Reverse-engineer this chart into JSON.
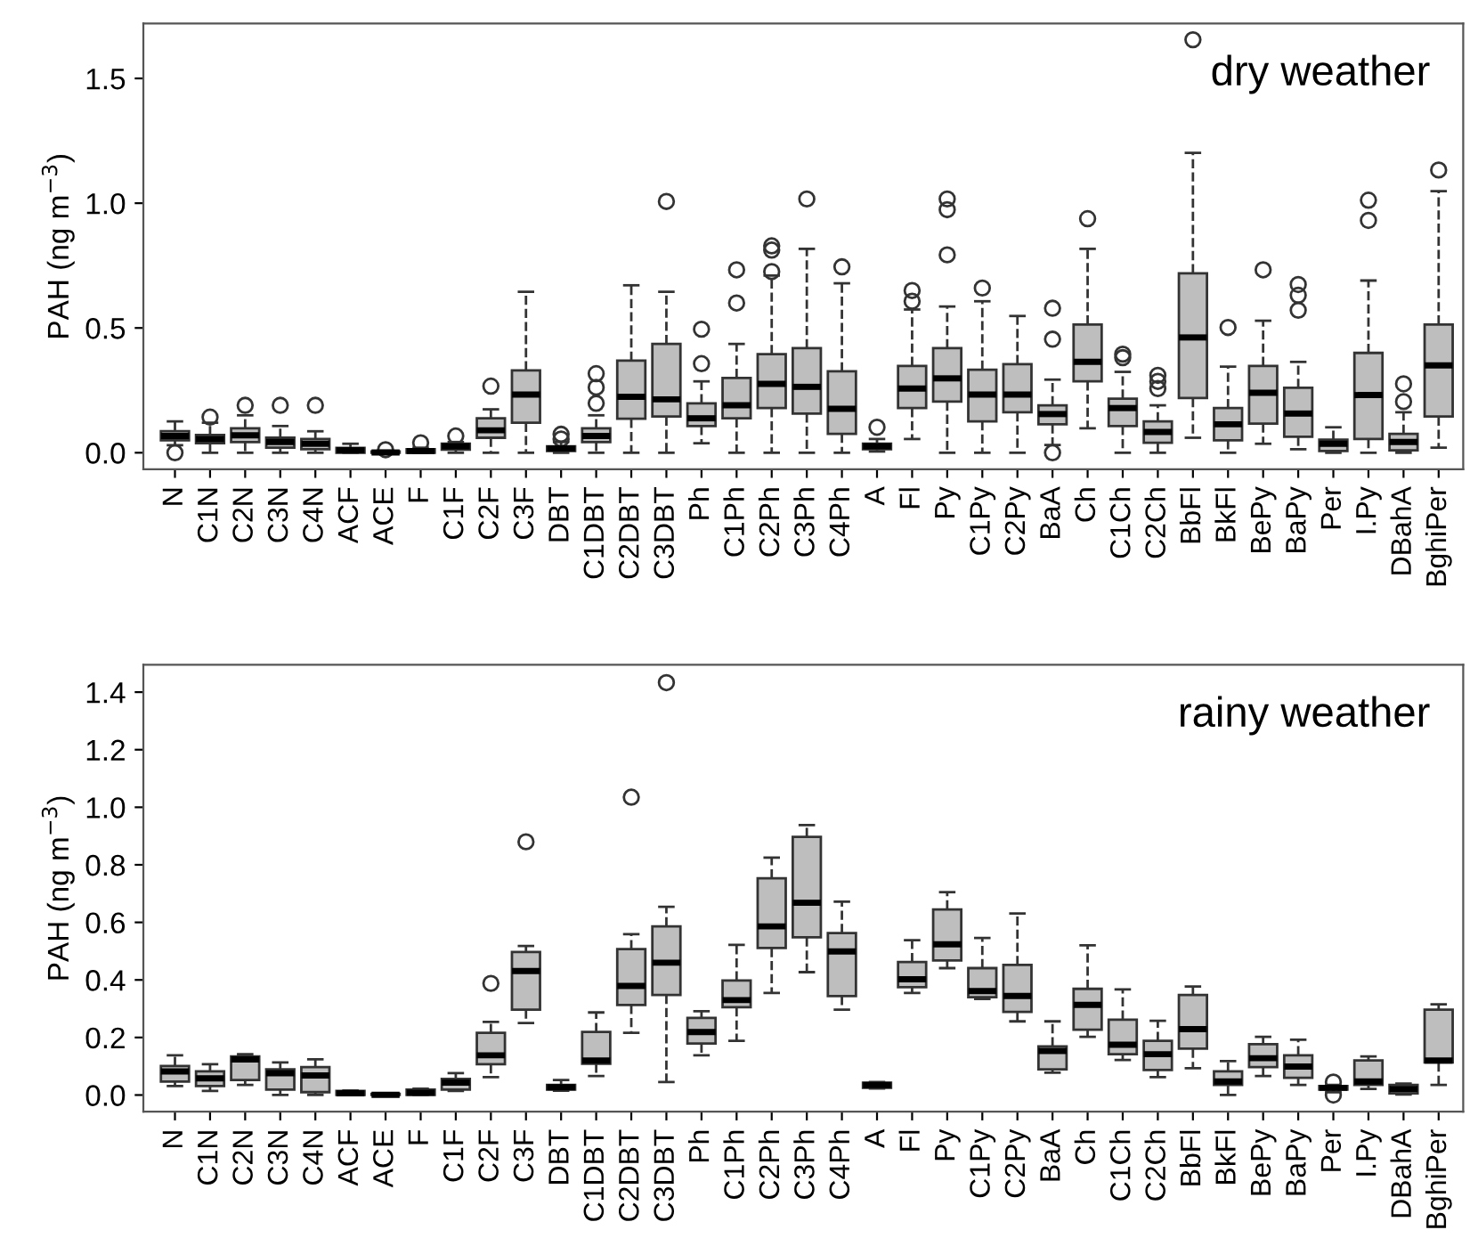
{
  "chart_data": [
    {
      "type": "box",
      "title": "dry weather",
      "ylabel": "PAH (ng m$^{−3}$)",
      "color": "#bebebe",
      "categories": [
        "N",
        "C1N",
        "C2N",
        "C3N",
        "C4N",
        "ACF",
        "ACE",
        "F",
        "C1F",
        "C2F",
        "C3F",
        "DBT",
        "C1DBT",
        "C2DBT",
        "C3DBT",
        "Ph",
        "C1Ph",
        "C2Ph",
        "C3Ph",
        "C4Ph",
        "A",
        "Fl",
        "Py",
        "C1Py",
        "C2Py",
        "BaA",
        "Ch",
        "C1Ch",
        "C2Ch",
        "BbFl",
        "BkFl",
        "BePy",
        "BaPy",
        "Per",
        "I.Py",
        "DBahA",
        "BghiPer"
      ],
      "ylim": [
        -0.066,
        1.72
      ],
      "yticks": [
        {
          "value": 0.0,
          "label": "0.0"
        },
        {
          "value": 0.5,
          "label": "0.5"
        },
        {
          "value": 1.0,
          "label": "1.0"
        },
        {
          "value": 1.5,
          "label": "1.5"
        }
      ],
      "boxes": [
        {
          "low": 0.03,
          "q1": 0.05,
          "median": 0.067,
          "q3": 0.086,
          "high": 0.126,
          "outliers": [
            0.0
          ]
        },
        {
          "low": 0.0,
          "q1": 0.038,
          "median": 0.055,
          "q3": 0.071,
          "high": 0.12,
          "outliers": [
            0.143
          ]
        },
        {
          "low": 0.0,
          "q1": 0.043,
          "median": 0.07,
          "q3": 0.098,
          "high": 0.15,
          "outliers": [
            0.19
          ]
        },
        {
          "low": 0.0,
          "q1": 0.02,
          "median": 0.043,
          "q3": 0.06,
          "high": 0.107,
          "outliers": [
            0.19
          ]
        },
        {
          "low": 0.0,
          "q1": 0.014,
          "median": 0.036,
          "q3": 0.055,
          "high": 0.086,
          "outliers": [
            0.19
          ]
        },
        {
          "low": 0.0,
          "q1": 0.0,
          "median": 0.01,
          "q3": 0.019,
          "high": 0.036
        },
        {
          "low": 0.0,
          "q1": 0.0,
          "median": 0.001,
          "q3": 0.005,
          "high": 0.008,
          "outliers": [
            0.012
          ]
        },
        {
          "low": 0.0,
          "q1": 0.0,
          "median": 0.007,
          "q3": 0.014,
          "high": 0.02,
          "outliers": [
            0.04
          ]
        },
        {
          "low": 0.0,
          "q1": 0.012,
          "median": 0.026,
          "q3": 0.036,
          "high": 0.043,
          "outliers": [
            0.067
          ]
        },
        {
          "low": 0.0,
          "q1": 0.06,
          "median": 0.09,
          "q3": 0.138,
          "high": 0.174,
          "outliers": [
            0.267
          ]
        },
        {
          "low": 0.0,
          "q1": 0.12,
          "median": 0.233,
          "q3": 0.33,
          "high": 0.645
        },
        {
          "low": 0.0,
          "q1": 0.007,
          "median": 0.017,
          "q3": 0.026,
          "high": 0.043,
          "outliers": [
            0.074,
            0.055
          ]
        },
        {
          "low": 0.0,
          "q1": 0.043,
          "median": 0.067,
          "q3": 0.098,
          "high": 0.15,
          "outliers": [
            0.317,
            0.262,
            0.198
          ]
        },
        {
          "low": 0.0,
          "q1": 0.136,
          "median": 0.224,
          "q3": 0.369,
          "high": 0.671
        },
        {
          "low": 0.0,
          "q1": 0.145,
          "median": 0.214,
          "q3": 0.436,
          "high": 0.645,
          "outliers": [
            1.007
          ]
        },
        {
          "low": 0.038,
          "q1": 0.107,
          "median": 0.138,
          "q3": 0.198,
          "high": 0.286,
          "outliers": [
            0.495,
            0.357
          ]
        },
        {
          "low": 0.0,
          "q1": 0.138,
          "median": 0.19,
          "q3": 0.3,
          "high": 0.436,
          "outliers": [
            0.733,
            0.6
          ]
        },
        {
          "low": 0.0,
          "q1": 0.179,
          "median": 0.276,
          "q3": 0.395,
          "high": 0.71,
          "outliers": [
            0.829,
            0.812,
            0.726
          ]
        },
        {
          "low": 0.0,
          "q1": 0.157,
          "median": 0.264,
          "q3": 0.419,
          "high": 0.817,
          "outliers": [
            1.017
          ]
        },
        {
          "low": 0.0,
          "q1": 0.076,
          "median": 0.176,
          "q3": 0.326,
          "high": 0.679,
          "outliers": [
            0.745
          ]
        },
        {
          "low": 0.005,
          "q1": 0.014,
          "median": 0.026,
          "q3": 0.036,
          "high": 0.055,
          "outliers": [
            0.102
          ]
        },
        {
          "low": 0.055,
          "q1": 0.179,
          "median": 0.257,
          "q3": 0.348,
          "high": 0.574,
          "outliers": [
            0.65,
            0.607
          ]
        },
        {
          "low": 0.0,
          "q1": 0.205,
          "median": 0.298,
          "q3": 0.419,
          "high": 0.586,
          "outliers": [
            1.017,
            0.974,
            0.793
          ]
        },
        {
          "low": 0.0,
          "q1": 0.126,
          "median": 0.233,
          "q3": 0.333,
          "high": 0.607,
          "outliers": [
            0.66
          ]
        },
        {
          "low": 0.0,
          "q1": 0.162,
          "median": 0.233,
          "q3": 0.355,
          "high": 0.548
        },
        {
          "low": 0.031,
          "q1": 0.114,
          "median": 0.155,
          "q3": 0.19,
          "high": 0.293,
          "outliers": [
            0.579,
            0.455,
            0.0
          ]
        },
        {
          "low": 0.098,
          "q1": 0.286,
          "median": 0.364,
          "q3": 0.514,
          "high": 0.817,
          "outliers": [
            0.938
          ]
        },
        {
          "low": 0.0,
          "q1": 0.107,
          "median": 0.179,
          "q3": 0.217,
          "high": 0.324,
          "outliers": [
            0.395,
            0.381
          ]
        },
        {
          "low": 0.0,
          "q1": 0.04,
          "median": 0.083,
          "q3": 0.126,
          "high": 0.19,
          "outliers": [
            0.31,
            0.286,
            0.257
          ]
        },
        {
          "low": 0.06,
          "q1": 0.219,
          "median": 0.462,
          "q3": 0.719,
          "high": 1.202,
          "outliers": [
            1.655
          ]
        },
        {
          "low": 0.0,
          "q1": 0.05,
          "median": 0.114,
          "q3": 0.179,
          "high": 0.345,
          "outliers": [
            0.502
          ]
        },
        {
          "low": 0.036,
          "q1": 0.117,
          "median": 0.24,
          "q3": 0.348,
          "high": 0.529,
          "outliers": [
            0.733
          ]
        },
        {
          "low": 0.014,
          "q1": 0.064,
          "median": 0.157,
          "q3": 0.26,
          "high": 0.364,
          "outliers": [
            0.674,
            0.631,
            0.571
          ]
        },
        {
          "low": 0.0,
          "q1": 0.007,
          "median": 0.036,
          "q3": 0.052,
          "high": 0.102
        },
        {
          "low": 0.0,
          "q1": 0.055,
          "median": 0.231,
          "q3": 0.4,
          "high": 0.69,
          "outliers": [
            1.012,
            0.931
          ]
        },
        {
          "low": 0.0,
          "q1": 0.01,
          "median": 0.043,
          "q3": 0.076,
          "high": 0.162,
          "outliers": [
            0.276,
            0.205
          ]
        },
        {
          "low": 0.02,
          "q1": 0.145,
          "median": 0.35,
          "q3": 0.514,
          "high": 1.048,
          "outliers": [
            1.133
          ]
        }
      ]
    },
    {
      "type": "box",
      "title": "rainy weather",
      "ylabel": "PAH (ng m$^{−3}$)",
      "color": "#bebebe",
      "categories": [
        "N",
        "C1N",
        "C2N",
        "C3N",
        "C4N",
        "ACF",
        "ACE",
        "F",
        "C1F",
        "C2F",
        "C3F",
        "DBT",
        "C1DBT",
        "C2DBT",
        "C3DBT",
        "Ph",
        "C1Ph",
        "C2Ph",
        "C3Ph",
        "C4Ph",
        "A",
        "Fl",
        "Py",
        "C1Py",
        "C2Py",
        "BaA",
        "Ch",
        "C1Ch",
        "C2Ch",
        "BbFl",
        "BkFl",
        "BePy",
        "BaPy",
        "Per",
        "I.Py",
        "DBahA",
        "BghiPer"
      ],
      "ylim": [
        -0.058,
        1.495
      ],
      "yticks": [
        {
          "value": 0.0,
          "label": "0.0"
        },
        {
          "value": 0.2,
          "label": "0.2"
        },
        {
          "value": 0.4,
          "label": "0.4"
        },
        {
          "value": 0.6,
          "label": "0.6"
        },
        {
          "value": 0.8,
          "label": "0.8"
        },
        {
          "value": 1.0,
          "label": "1.0"
        },
        {
          "value": 1.2,
          "label": "1.2"
        },
        {
          "value": 1.4,
          "label": "1.4"
        }
      ],
      "boxes": [
        {
          "low": 0.031,
          "q1": 0.047,
          "median": 0.082,
          "q3": 0.101,
          "high": 0.138
        },
        {
          "low": 0.014,
          "q1": 0.031,
          "median": 0.058,
          "q3": 0.082,
          "high": 0.107
        },
        {
          "low": 0.035,
          "q1": 0.052,
          "median": 0.124,
          "q3": 0.134,
          "high": 0.142
        },
        {
          "low": 0.0,
          "q1": 0.019,
          "median": 0.076,
          "q3": 0.089,
          "high": 0.113
        },
        {
          "low": 0.0,
          "q1": 0.01,
          "median": 0.068,
          "q3": 0.097,
          "high": 0.124
        },
        {
          "low": 0.0,
          "q1": 0.0,
          "median": 0.006,
          "q3": 0.014,
          "high": 0.016
        },
        {
          "low": 0.0,
          "q1": 0.0,
          "median": 0.001,
          "q3": 0.004,
          "high": 0.005
        },
        {
          "low": 0.0,
          "q1": 0.0,
          "median": 0.008,
          "q3": 0.019,
          "high": 0.022
        },
        {
          "low": 0.014,
          "q1": 0.019,
          "median": 0.043,
          "q3": 0.056,
          "high": 0.076
        },
        {
          "low": 0.062,
          "q1": 0.107,
          "median": 0.138,
          "q3": 0.216,
          "high": 0.254,
          "outliers": [
            0.388
          ]
        },
        {
          "low": 0.25,
          "q1": 0.297,
          "median": 0.431,
          "q3": 0.497,
          "high": 0.518,
          "outliers": [
            0.88
          ]
        },
        {
          "low": 0.015,
          "q1": 0.019,
          "median": 0.027,
          "q3": 0.035,
          "high": 0.052
        },
        {
          "low": 0.066,
          "q1": 0.109,
          "median": 0.12,
          "q3": 0.219,
          "high": 0.287
        },
        {
          "low": 0.216,
          "q1": 0.313,
          "median": 0.379,
          "q3": 0.507,
          "high": 0.559,
          "outliers": [
            1.035
          ]
        },
        {
          "low": 0.045,
          "q1": 0.348,
          "median": 0.46,
          "q3": 0.586,
          "high": 0.654,
          "outliers": [
            1.433
          ]
        },
        {
          "low": 0.138,
          "q1": 0.179,
          "median": 0.219,
          "q3": 0.268,
          "high": 0.291
        },
        {
          "low": 0.188,
          "q1": 0.305,
          "median": 0.33,
          "q3": 0.398,
          "high": 0.522
        },
        {
          "low": 0.355,
          "q1": 0.511,
          "median": 0.586,
          "q3": 0.753,
          "high": 0.825
        },
        {
          "low": 0.427,
          "q1": 0.548,
          "median": 0.668,
          "q3": 0.897,
          "high": 0.938
        },
        {
          "low": 0.297,
          "q1": 0.344,
          "median": 0.499,
          "q3": 0.563,
          "high": 0.672
        },
        {
          "low": 0.023,
          "q1": 0.025,
          "median": 0.035,
          "q3": 0.043,
          "high": 0.045
        },
        {
          "low": 0.355,
          "q1": 0.375,
          "median": 0.402,
          "q3": 0.462,
          "high": 0.538
        },
        {
          "low": 0.441,
          "q1": 0.468,
          "median": 0.524,
          "q3": 0.645,
          "high": 0.705
        },
        {
          "low": 0.334,
          "q1": 0.34,
          "median": 0.361,
          "q3": 0.441,
          "high": 0.546
        },
        {
          "low": 0.256,
          "q1": 0.289,
          "median": 0.344,
          "q3": 0.452,
          "high": 0.631
        },
        {
          "low": 0.078,
          "q1": 0.089,
          "median": 0.153,
          "q3": 0.169,
          "high": 0.256
        },
        {
          "low": 0.202,
          "q1": 0.227,
          "median": 0.313,
          "q3": 0.369,
          "high": 0.52
        },
        {
          "low": 0.122,
          "q1": 0.142,
          "median": 0.175,
          "q3": 0.262,
          "high": 0.367
        },
        {
          "low": 0.062,
          "q1": 0.087,
          "median": 0.142,
          "q3": 0.188,
          "high": 0.258
        },
        {
          "low": 0.093,
          "q1": 0.161,
          "median": 0.229,
          "q3": 0.348,
          "high": 0.377
        },
        {
          "low": 0.0,
          "q1": 0.035,
          "median": 0.047,
          "q3": 0.082,
          "high": 0.118
        },
        {
          "low": 0.066,
          "q1": 0.097,
          "median": 0.128,
          "q3": 0.177,
          "high": 0.202
        },
        {
          "low": 0.035,
          "q1": 0.06,
          "median": 0.099,
          "q3": 0.138,
          "high": 0.192
        },
        {
          "low": 0.01,
          "q1": 0.019,
          "median": 0.025,
          "q3": 0.031,
          "high": 0.035,
          "outliers": [
            0.045,
            0.0
          ]
        },
        {
          "low": 0.021,
          "q1": 0.035,
          "median": 0.047,
          "q3": 0.12,
          "high": 0.134
        },
        {
          "low": 0.002,
          "q1": 0.006,
          "median": 0.021,
          "q3": 0.035,
          "high": 0.04
        },
        {
          "low": 0.035,
          "q1": 0.113,
          "median": 0.12,
          "q3": 0.297,
          "high": 0.315
        }
      ]
    }
  ]
}
